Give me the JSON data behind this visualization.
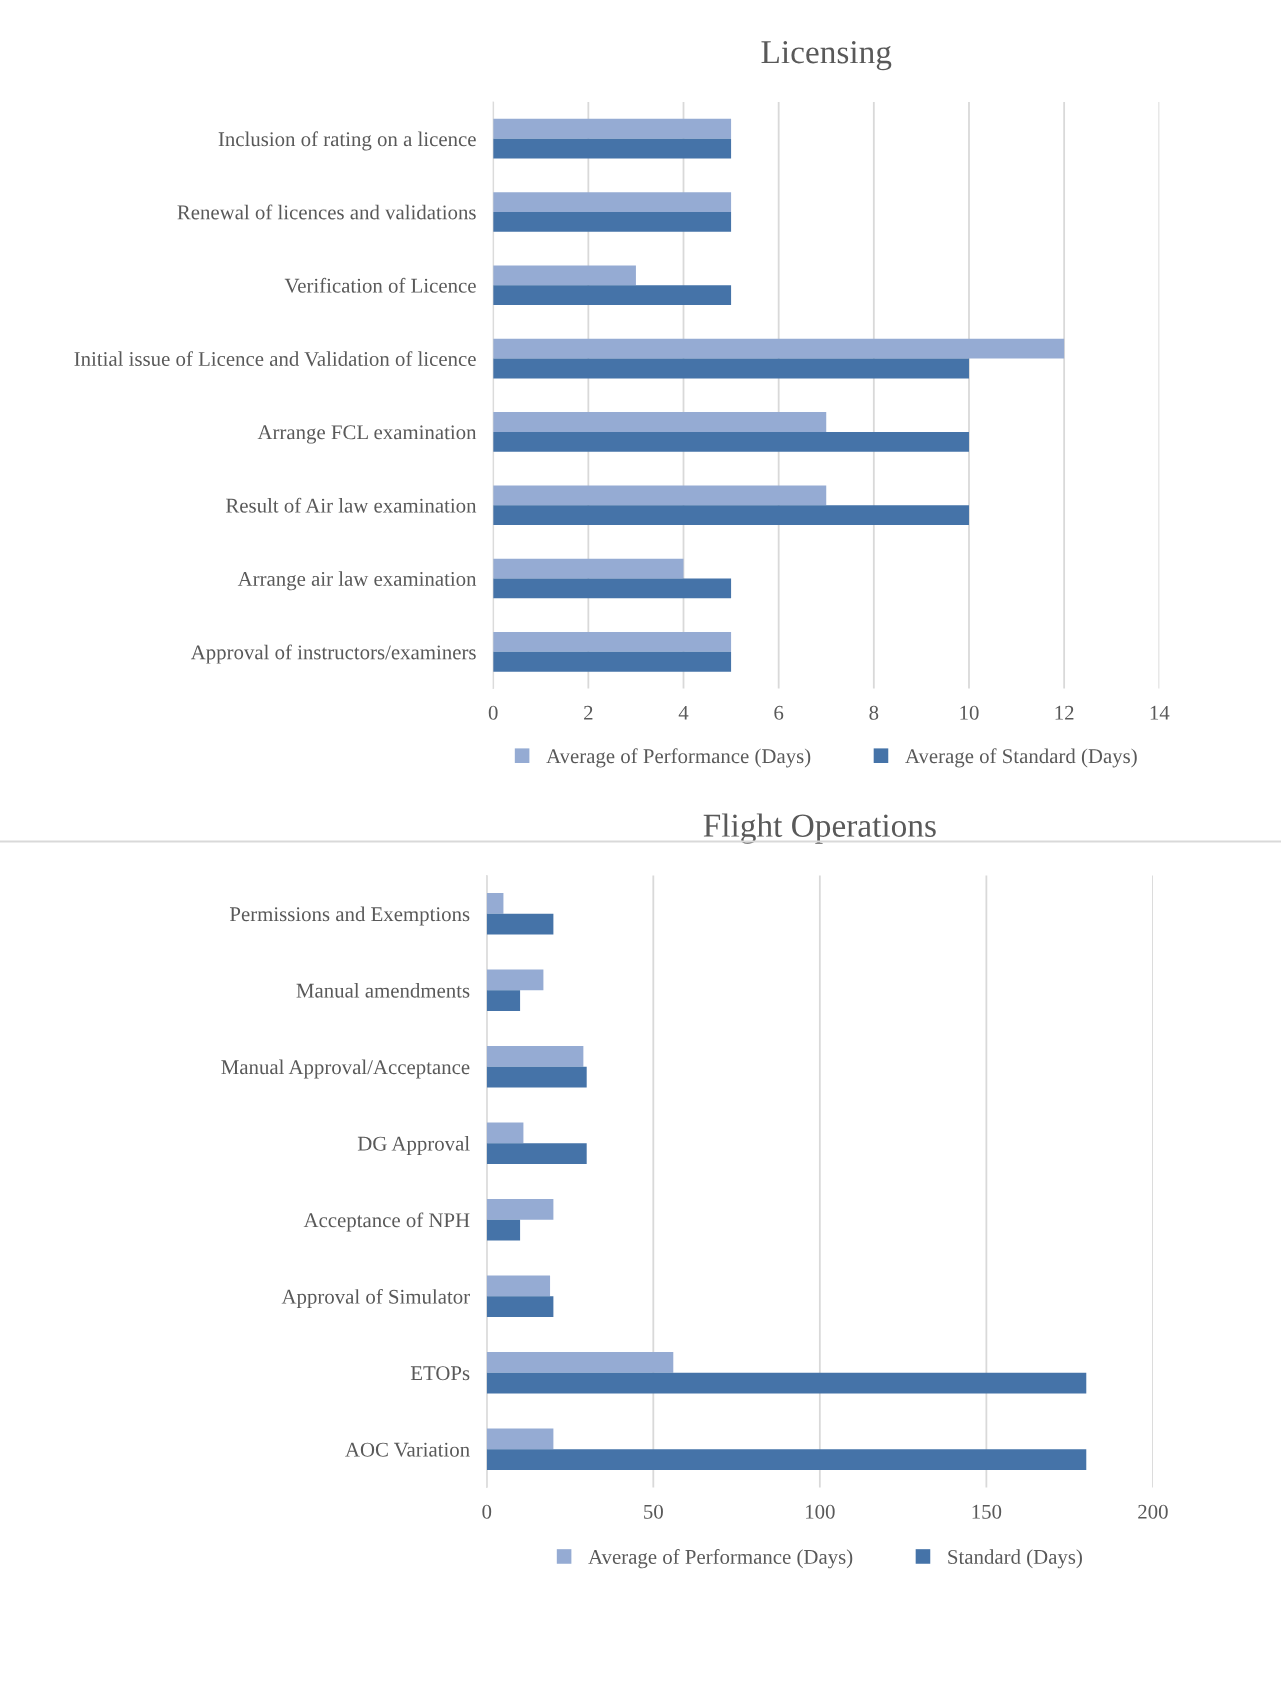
{
  "chart_data": [
    {
      "type": "bar",
      "orientation": "horizontal",
      "title": "Licensing",
      "categories": [
        "Inclusion of rating on a licence",
        "Renewal of licences and validations",
        "Verification of Licence",
        "Initial issue of Licence and Validation of licence",
        "Arrange FCL examination",
        "Result of Air law examination",
        "Arrange air law examination",
        "Approval of instructors/examiners"
      ],
      "series": [
        {
          "name": "Average of Performance (Days)",
          "color": "#95abd3",
          "values": [
            5,
            5,
            3,
            12,
            7,
            7,
            4,
            5
          ]
        },
        {
          "name": "Average of Standard (Days)",
          "color": "#4573a8",
          "values": [
            5,
            5,
            5,
            10,
            10,
            10,
            5,
            5
          ]
        }
      ],
      "xlim": [
        0,
        14
      ],
      "xticks": [
        0,
        2,
        4,
        6,
        8,
        10,
        12,
        14
      ],
      "grid": "x",
      "legend": "bottom"
    },
    {
      "type": "bar",
      "orientation": "horizontal",
      "title": "Flight Operations",
      "categories": [
        "Permissions and Exemptions",
        "Manual amendments",
        "Manual Approval/Acceptance",
        "DG Approval",
        "Acceptance of NPH",
        "Approval of Simulator",
        "ETOPs",
        "AOC Variation"
      ],
      "series": [
        {
          "name": "Average of Performance (Days)",
          "color": "#95abd3",
          "values": [
            5,
            17,
            29,
            11,
            20,
            19,
            56,
            20
          ]
        },
        {
          "name": "Standard (Days)",
          "color": "#4573a8",
          "values": [
            20,
            10,
            30,
            30,
            10,
            20,
            180,
            180
          ]
        }
      ],
      "xlim": [
        0,
        200
      ],
      "xticks": [
        0,
        50,
        100,
        150,
        200
      ],
      "grid": "x",
      "legend": "bottom"
    }
  ]
}
